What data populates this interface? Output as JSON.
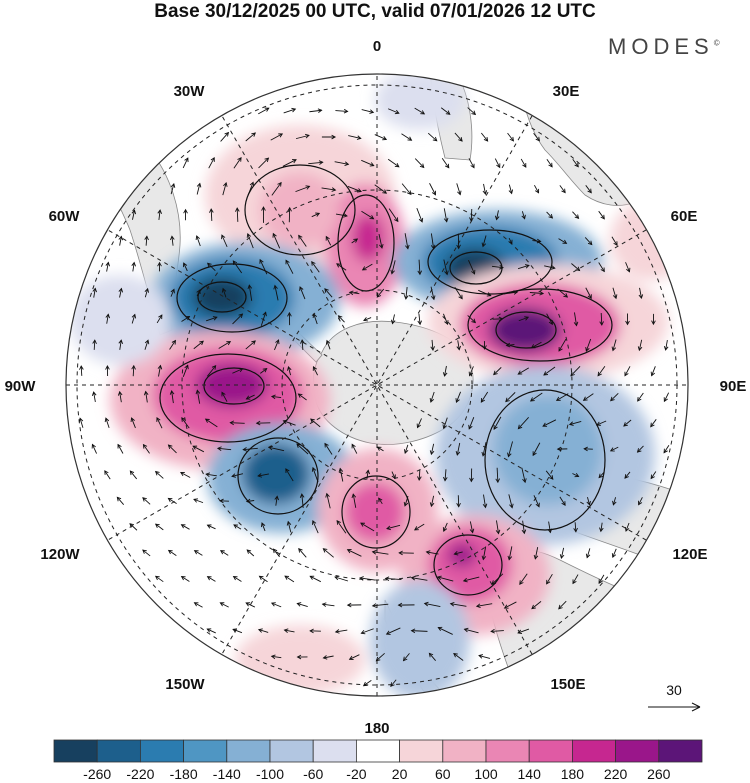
{
  "title": "Base 30/12/2025 00 UTC, valid 07/01/2026 12 UTC",
  "brand": "MODES",
  "brand_mark": "©",
  "longitude_labels": {
    "lon_0": "0",
    "lon_30e": "30E",
    "lon_60e": "60E",
    "lon_90e": "90E",
    "lon_120e": "120E",
    "lon_150e": "150E",
    "lon_180": "180",
    "lon_150w": "150W",
    "lon_120w": "120W",
    "lon_90w": "90W",
    "lon_60w": "60W",
    "lon_30w": "30W"
  },
  "reference_vector": {
    "value": "30"
  },
  "colorbar": {
    "ticks": [
      "-260",
      "-220",
      "-180",
      "-140",
      "-100",
      "-60",
      "-20",
      "20",
      "60",
      "100",
      "140",
      "180",
      "220",
      "260"
    ],
    "colors": [
      "#17405f",
      "#1d5f8c",
      "#2b7cb0",
      "#4f96c3",
      "#85b0d4",
      "#b2c6e1",
      "#dcdfef",
      "#ffffff",
      "#f6d5d9",
      "#f1b2c5",
      "#ea86b4",
      "#e05aa4",
      "#c62790",
      "#9a168a",
      "#5c1578"
    ]
  },
  "colors": {
    "land": "#e8e8e8",
    "coast": "#888888",
    "grid": "#222222",
    "arrow": "#111111"
  }
}
